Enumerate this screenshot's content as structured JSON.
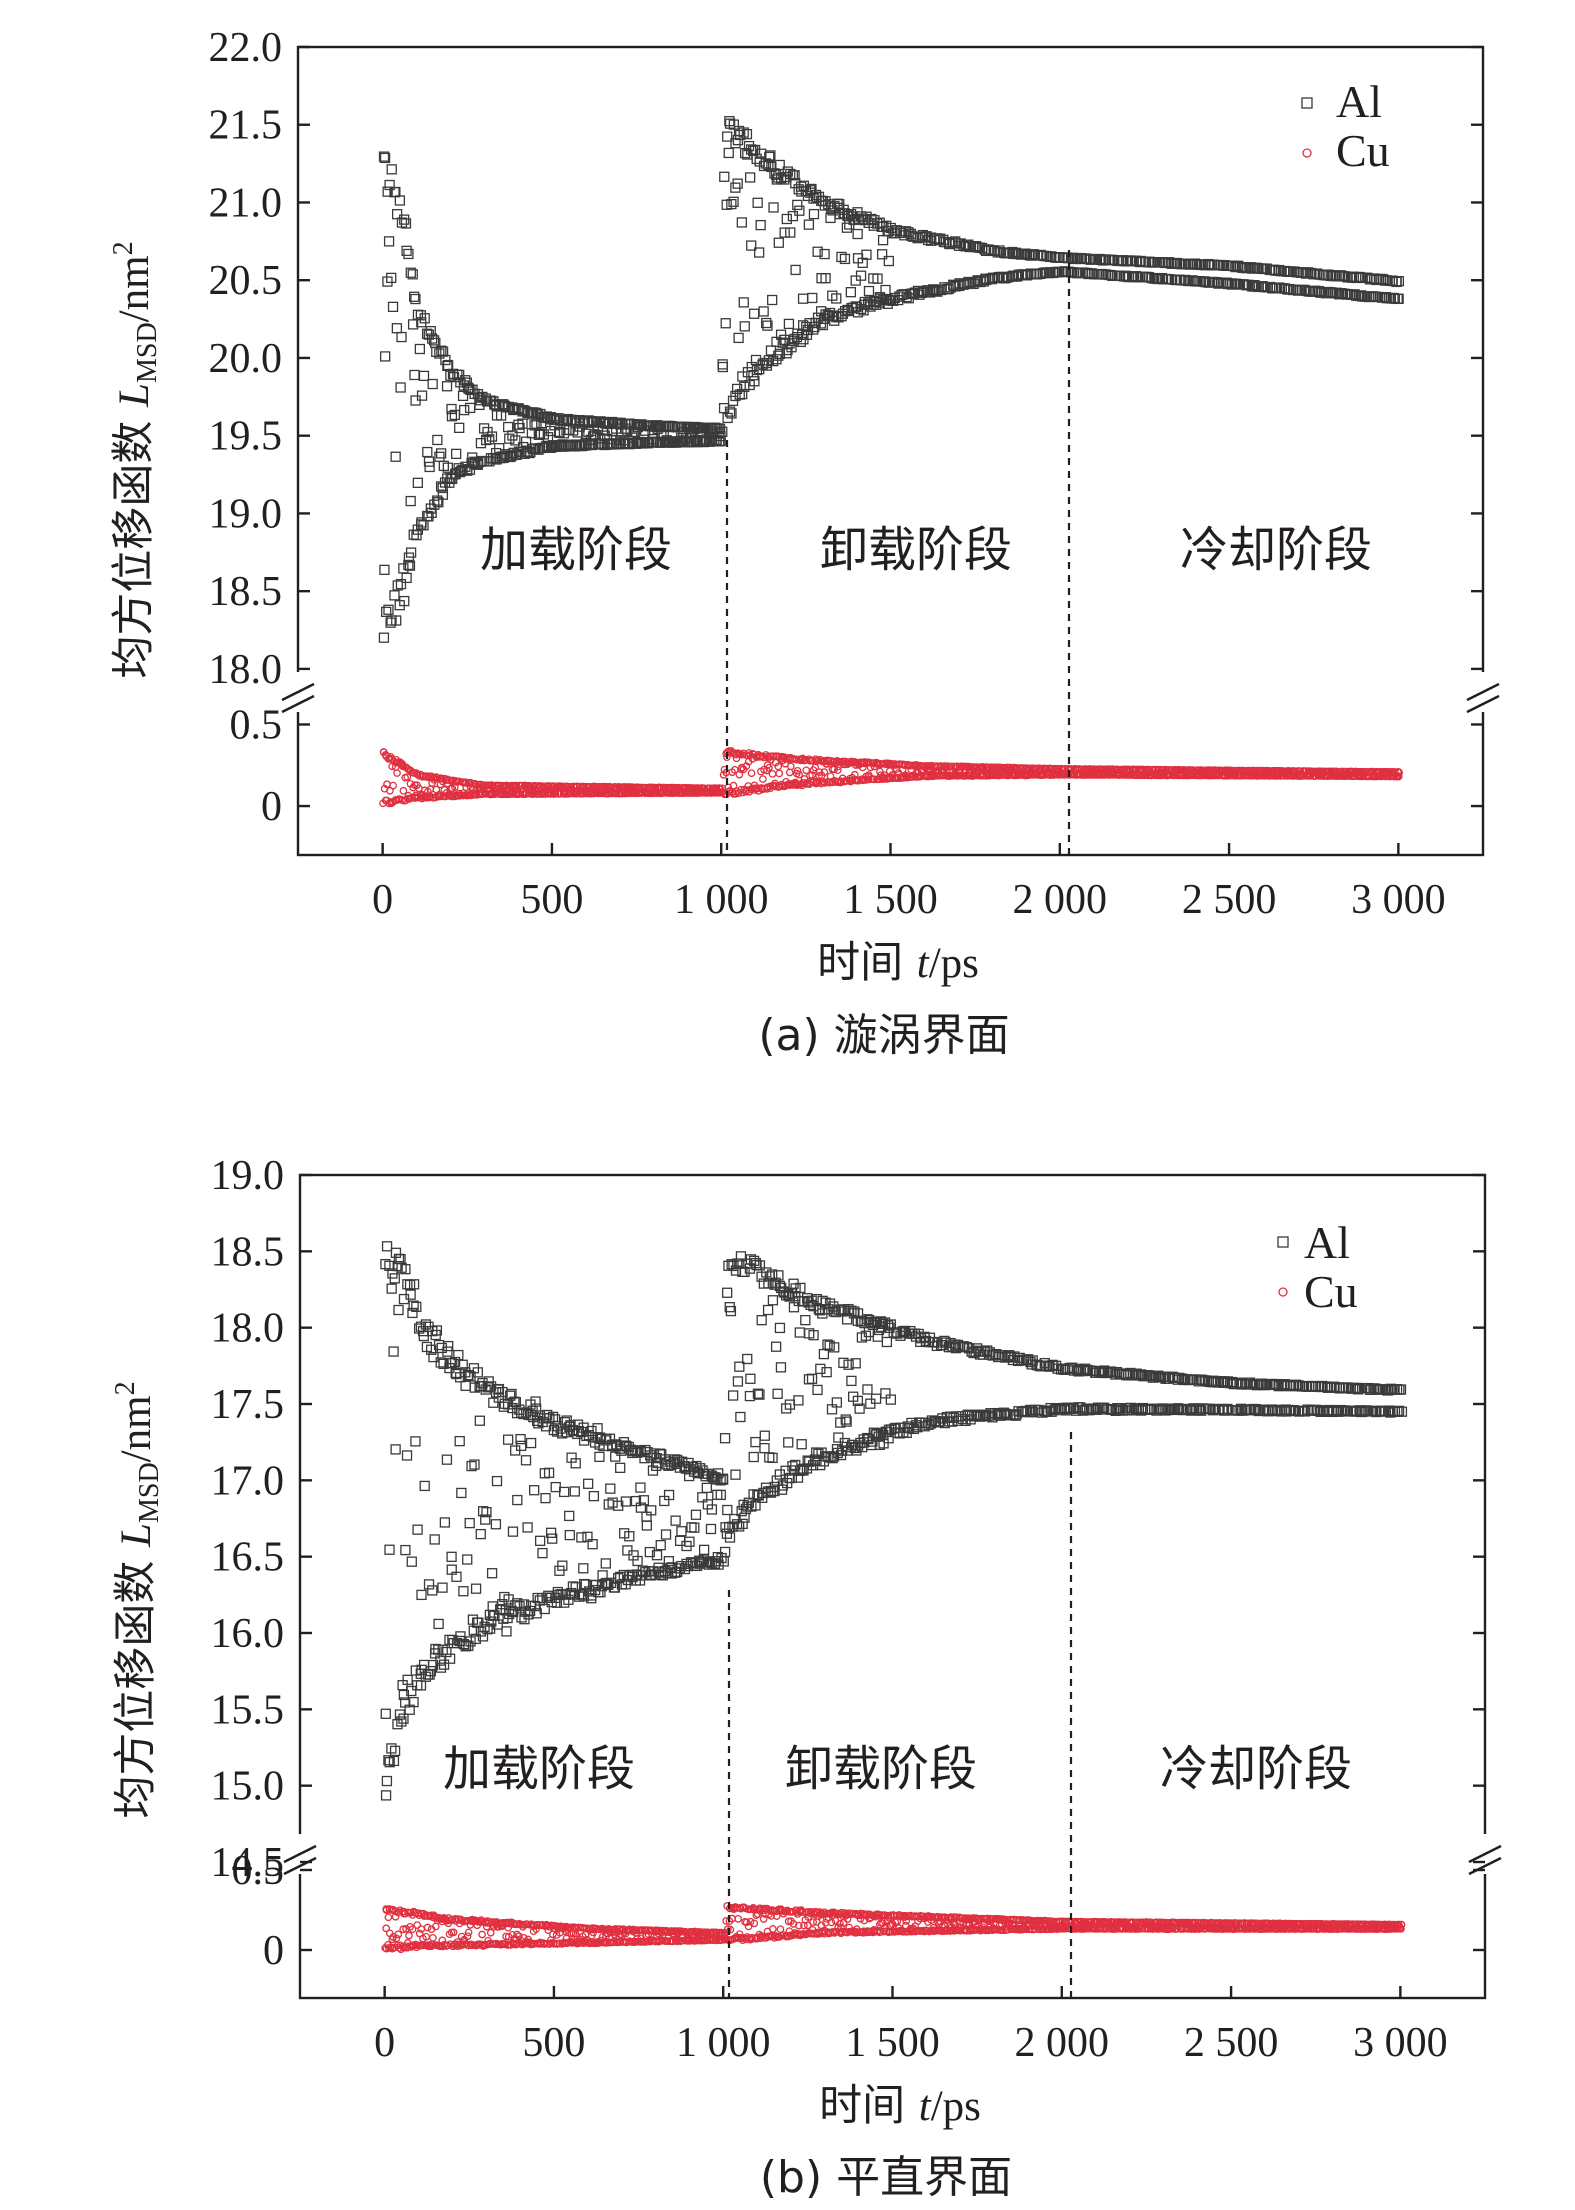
{
  "figure": {
    "ylabel_prefix": "均方位移函数 ",
    "ylabel_var": "L",
    "ylabel_sub": "MSD",
    "ylabel_unit": "/nm",
    "ylabel_sup": "2",
    "xlabel_prefix": "时间 ",
    "xlabel_var": "t",
    "xlabel_unit": "/ps",
    "x_tick_labels": [
      "0",
      "500",
      "1 000",
      "1 500",
      "2 000",
      "2 500",
      "3 000"
    ]
  },
  "chart_data": [
    {
      "type": "scatter",
      "caption": "(a) 漩涡界面",
      "xlabel": "时间 t/ps",
      "ylabel": "均方位移函数 LMSD/nm2",
      "xlim": [
        -250,
        3250
      ],
      "x_ticks": [
        0,
        500,
        1000,
        1500,
        2000,
        2500,
        3000
      ],
      "broken_y_axis": true,
      "upper_ylim": [
        17.8,
        22.0
      ],
      "upper_ticks": [
        18.0,
        18.5,
        19.0,
        19.5,
        20.0,
        20.5,
        21.0,
        21.5,
        22.0
      ],
      "upper_tick_labels": [
        "18.0",
        "18.5",
        "19.0",
        "19.5",
        "20.0",
        "20.5",
        "21.0",
        "21.5",
        "22.0"
      ],
      "lower_ylim": [
        -0.3,
        0.65
      ],
      "lower_ticks": [
        0,
        0.5
      ],
      "lower_tick_labels": [
        "0",
        "0.5"
      ],
      "phase_boundaries": [
        1000,
        2000
      ],
      "phase_labels": [
        "加载阶段",
        "卸载阶段",
        "冷却阶段"
      ],
      "legend_position": "top-right",
      "series": [
        {
          "name": "Al",
          "marker": "square",
          "color": "#3a3a3a",
          "axis": "upper",
          "envelope": [
            {
              "x": 0,
              "low": 18.05,
              "high": 21.45
            },
            {
              "x": 50,
              "low": 18.3,
              "high": 21.1
            },
            {
              "x": 100,
              "low": 18.8,
              "high": 20.4
            },
            {
              "x": 200,
              "low": 19.2,
              "high": 19.95
            },
            {
              "x": 300,
              "low": 19.32,
              "high": 19.75
            },
            {
              "x": 500,
              "low": 19.42,
              "high": 19.62
            },
            {
              "x": 800,
              "low": 19.45,
              "high": 19.57
            },
            {
              "x": 1000,
              "low": 19.46,
              "high": 19.55
            },
            {
              "x": 1010,
              "low": 19.55,
              "high": 21.62
            },
            {
              "x": 1100,
              "low": 19.85,
              "high": 21.4
            },
            {
              "x": 1300,
              "low": 20.2,
              "high": 21.05
            },
            {
              "x": 1500,
              "low": 20.35,
              "high": 20.85
            },
            {
              "x": 1800,
              "low": 20.5,
              "high": 20.7
            },
            {
              "x": 2000,
              "low": 20.55,
              "high": 20.65
            },
            {
              "x": 2500,
              "low": 20.47,
              "high": 20.6
            },
            {
              "x": 3000,
              "low": 20.37,
              "high": 20.5
            }
          ]
        },
        {
          "name": "Cu",
          "marker": "circle",
          "color": "#e03040",
          "axis": "lower",
          "envelope": [
            {
              "x": 0,
              "low": 0.0,
              "high": 0.34
            },
            {
              "x": 100,
              "low": 0.04,
              "high": 0.2
            },
            {
              "x": 300,
              "low": 0.07,
              "high": 0.13
            },
            {
              "x": 1000,
              "low": 0.08,
              "high": 0.11
            },
            {
              "x": 1010,
              "low": 0.06,
              "high": 0.35
            },
            {
              "x": 1200,
              "low": 0.12,
              "high": 0.3
            },
            {
              "x": 1600,
              "low": 0.18,
              "high": 0.25
            },
            {
              "x": 2000,
              "low": 0.19,
              "high": 0.23
            },
            {
              "x": 3000,
              "low": 0.18,
              "high": 0.21
            }
          ]
        }
      ]
    },
    {
      "type": "scatter",
      "caption": "(b) 平直界面",
      "xlabel": "时间 t/ps",
      "ylabel": "均方位移函数 LMSD/nm2",
      "xlim": [
        -250,
        3250
      ],
      "x_ticks": [
        0,
        500,
        1000,
        1500,
        2000,
        2500,
        3000
      ],
      "broken_y_axis": true,
      "upper_ylim": [
        14.5,
        19.0
      ],
      "upper_ticks": [
        14.5,
        15.0,
        15.5,
        16.0,
        16.5,
        17.0,
        17.5,
        18.0,
        18.5,
        19.0
      ],
      "upper_tick_labels": [
        "14.5",
        "15.0",
        "15.5",
        "16.0",
        "16.5",
        "17.0",
        "17.5",
        "18.0",
        "18.5",
        "19.0"
      ],
      "lower_ylim": [
        -0.3,
        0.55
      ],
      "lower_ticks": [
        0,
        0.5
      ],
      "lower_tick_labels": [
        "0",
        "0.5"
      ],
      "phase_boundaries": [
        1000,
        2000
      ],
      "phase_labels": [
        "加载阶段",
        "卸载阶段",
        "冷却阶段"
      ],
      "legend_position": "top-right",
      "series": [
        {
          "name": "Al",
          "marker": "square",
          "color": "#3a3a3a",
          "axis": "upper",
          "envelope": [
            {
              "x": 0,
              "low": 14.85,
              "high": 18.7
            },
            {
              "x": 50,
              "low": 15.35,
              "high": 18.5
            },
            {
              "x": 150,
              "low": 15.7,
              "high": 18.0
            },
            {
              "x": 300,
              "low": 15.95,
              "high": 17.7
            },
            {
              "x": 500,
              "low": 16.15,
              "high": 17.45
            },
            {
              "x": 800,
              "low": 16.35,
              "high": 17.2
            },
            {
              "x": 1000,
              "low": 16.45,
              "high": 17.05
            },
            {
              "x": 1010,
              "low": 16.5,
              "high": 18.6
            },
            {
              "x": 1100,
              "low": 16.8,
              "high": 18.45
            },
            {
              "x": 1300,
              "low": 17.1,
              "high": 18.2
            },
            {
              "x": 1600,
              "low": 17.35,
              "high": 17.95
            },
            {
              "x": 2000,
              "low": 17.45,
              "high": 17.75
            },
            {
              "x": 2500,
              "low": 17.45,
              "high": 17.65
            },
            {
              "x": 3000,
              "low": 17.44,
              "high": 17.6
            }
          ]
        },
        {
          "name": "Cu",
          "marker": "circle",
          "color": "#e03040",
          "axis": "lower",
          "envelope": [
            {
              "x": 0,
              "low": 0.0,
              "high": 0.27
            },
            {
              "x": 200,
              "low": 0.02,
              "high": 0.2
            },
            {
              "x": 600,
              "low": 0.04,
              "high": 0.14
            },
            {
              "x": 1000,
              "low": 0.06,
              "high": 0.11
            },
            {
              "x": 1010,
              "low": 0.05,
              "high": 0.28
            },
            {
              "x": 1300,
              "low": 0.1,
              "high": 0.24
            },
            {
              "x": 2000,
              "low": 0.13,
              "high": 0.18
            },
            {
              "x": 3000,
              "low": 0.13,
              "high": 0.16
            }
          ]
        }
      ]
    }
  ]
}
